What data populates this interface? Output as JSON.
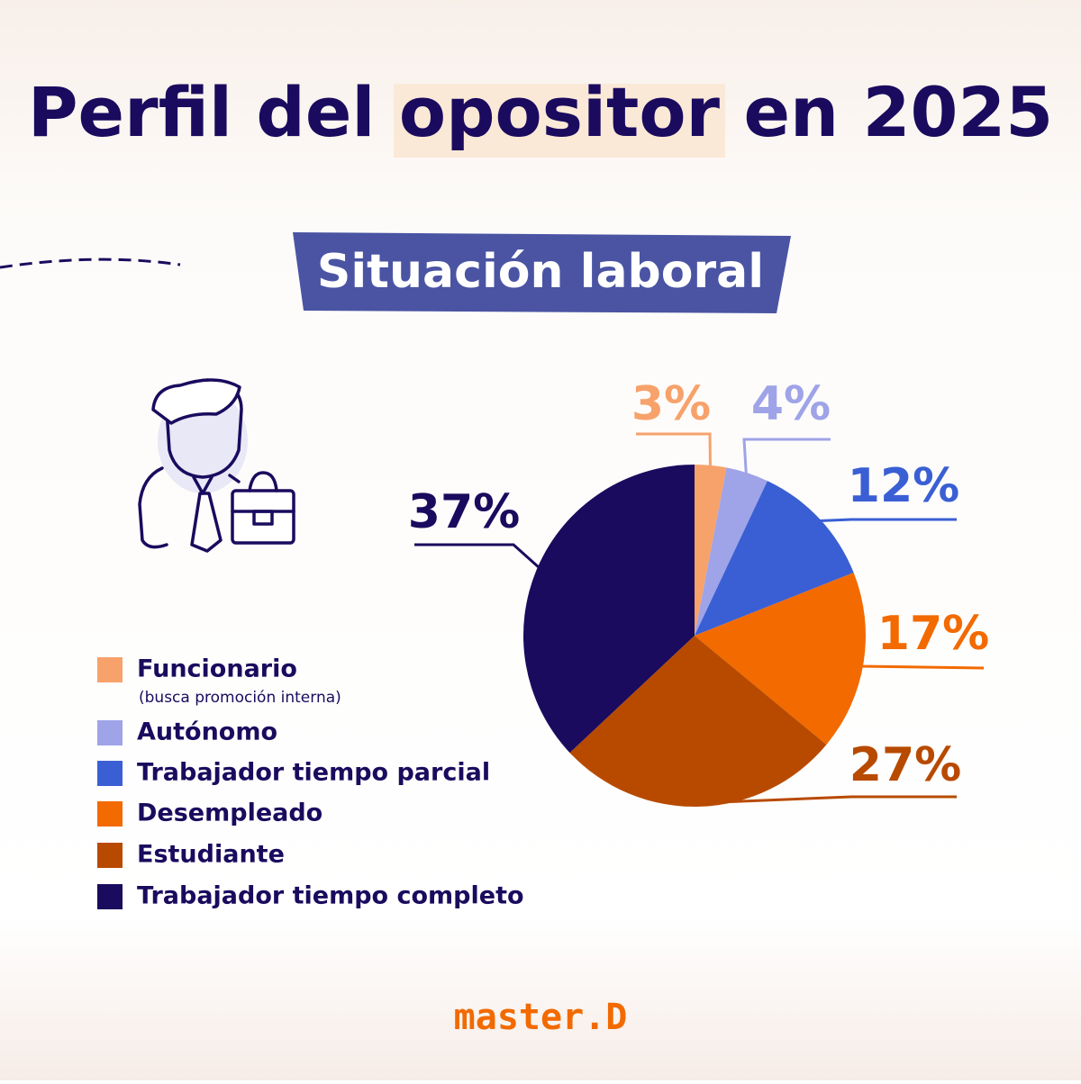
{
  "chart_data": {
    "type": "pie",
    "title": "Perfil del opositor en 2025",
    "subtitle": "Situación laboral",
    "categories": [
      "Funcionario",
      "Autónomo",
      "Trabajador tiempo parcial",
      "Desempleado",
      "Estudiante",
      "Trabajador tiempo completo"
    ],
    "note": "(busca promoción interna)",
    "values": [
      3,
      4,
      12,
      17,
      27,
      37
    ],
    "value_labels": [
      "3%",
      "4%",
      "12%",
      "17%",
      "27%",
      "37%"
    ],
    "colors": [
      "#f7a26b",
      "#9fa3e8",
      "#3a5fd4",
      "#f26a00",
      "#b84a00",
      "#1a0b5e"
    ]
  },
  "brand": "master.D"
}
